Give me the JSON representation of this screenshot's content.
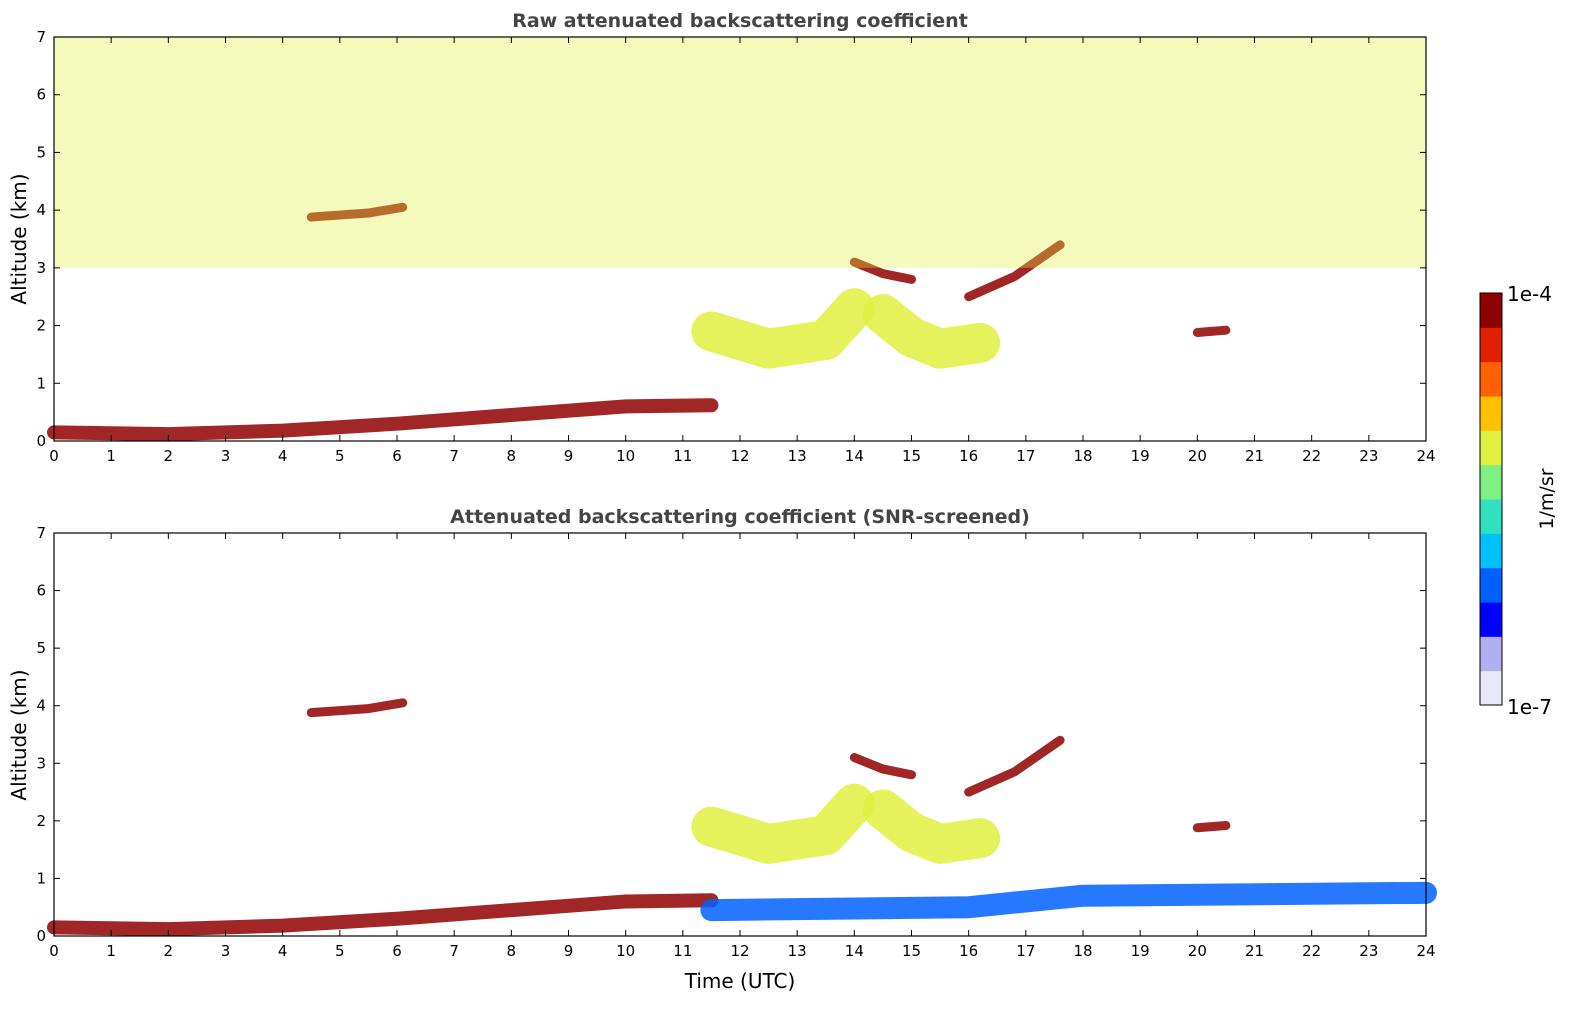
{
  "chart_data": [
    {
      "type": "heatmap",
      "title": "Raw attenuated backscattering coefficient",
      "xlabel": "",
      "ylabel": "Altitude (km)",
      "xlim": [
        0,
        24
      ],
      "ylim": [
        0,
        7
      ],
      "xticks": [
        0,
        1,
        2,
        3,
        4,
        5,
        6,
        7,
        8,
        9,
        10,
        11,
        12,
        13,
        14,
        15,
        16,
        17,
        18,
        19,
        20,
        21,
        22,
        23,
        24
      ],
      "yticks": [
        0,
        1,
        2,
        3,
        4,
        5,
        6,
        7
      ],
      "scale": "log",
      "features": [
        {
          "kind": "boundary_layer",
          "x": [
            0,
            2,
            4,
            6,
            8,
            10,
            11.5
          ],
          "y": [
            0.15,
            0.12,
            0.18,
            0.3,
            0.45,
            0.6,
            0.62
          ],
          "level": "high"
        },
        {
          "kind": "cloud_layer",
          "x": [
            4.5,
            5.5,
            6.1
          ],
          "y": [
            3.88,
            3.95,
            4.05
          ],
          "level": "high"
        },
        {
          "kind": "aerosol_layer",
          "x": [
            11.5,
            12.5,
            13.5,
            14
          ],
          "y": [
            1.9,
            1.6,
            1.75,
            2.3
          ],
          "level": "medium"
        },
        {
          "kind": "aerosol_layer",
          "x": [
            14.5,
            15,
            15.5,
            16.2
          ],
          "y": [
            2.2,
            1.8,
            1.6,
            1.7
          ],
          "level": "medium"
        },
        {
          "kind": "cloud_layer",
          "x": [
            14,
            14.5,
            15
          ],
          "y": [
            3.1,
            2.9,
            2.8
          ],
          "level": "high"
        },
        {
          "kind": "cloud_layer",
          "x": [
            16,
            16.8,
            17.6
          ],
          "y": [
            2.5,
            2.85,
            3.4
          ],
          "level": "high"
        },
        {
          "kind": "cloud_layer",
          "x": [
            20,
            20.5
          ],
          "y": [
            1.88,
            1.92
          ],
          "level": "high"
        },
        {
          "kind": "noise_background",
          "x": [
            0,
            24
          ],
          "y": [
            3,
            7
          ],
          "level": "medium"
        }
      ]
    },
    {
      "type": "heatmap",
      "title": "Attenuated backscattering coefficient (SNR-screened)",
      "xlabel": "Time (UTC)",
      "ylabel": "Altitude (km)",
      "xlim": [
        0,
        24
      ],
      "ylim": [
        0,
        7
      ],
      "xticks": [
        0,
        1,
        2,
        3,
        4,
        5,
        6,
        7,
        8,
        9,
        10,
        11,
        12,
        13,
        14,
        15,
        16,
        17,
        18,
        19,
        20,
        21,
        22,
        23,
        24
      ],
      "yticks": [
        0,
        1,
        2,
        3,
        4,
        5,
        6,
        7
      ],
      "scale": "log",
      "features": [
        {
          "kind": "boundary_layer",
          "x": [
            0,
            2,
            4,
            6,
            8,
            10,
            11.5
          ],
          "y": [
            0.15,
            0.12,
            0.18,
            0.3,
            0.45,
            0.6,
            0.62
          ],
          "level": "high"
        },
        {
          "kind": "cloud_layer",
          "x": [
            4.5,
            5.5,
            6.1
          ],
          "y": [
            3.88,
            3.95,
            4.05
          ],
          "level": "high"
        },
        {
          "kind": "aerosol_layer",
          "x": [
            11.5,
            12.5,
            13.5,
            14
          ],
          "y": [
            1.9,
            1.6,
            1.75,
            2.3
          ],
          "level": "medium"
        },
        {
          "kind": "aerosol_layer",
          "x": [
            14.5,
            15,
            15.5,
            16.2
          ],
          "y": [
            2.2,
            1.8,
            1.6,
            1.7
          ],
          "level": "medium"
        },
        {
          "kind": "cloud_layer",
          "x": [
            14,
            14.5,
            15
          ],
          "y": [
            3.1,
            2.9,
            2.8
          ],
          "level": "high"
        },
        {
          "kind": "cloud_layer",
          "x": [
            16,
            16.8,
            17.6
          ],
          "y": [
            2.5,
            2.85,
            3.4
          ],
          "level": "high"
        },
        {
          "kind": "cloud_layer",
          "x": [
            20,
            20.5
          ],
          "y": [
            1.88,
            1.92
          ],
          "level": "high"
        },
        {
          "kind": "low_signal_layer",
          "x": [
            11.5,
            16,
            18,
            24
          ],
          "y": [
            0.45,
            0.5,
            0.7,
            0.75
          ],
          "level": "low"
        }
      ]
    }
  ],
  "colorbar": {
    "label": "1/m/sr",
    "max_label": "1e-4",
    "min_label": "1e-7",
    "range": [
      1e-07,
      0.0001
    ],
    "colors": [
      "#e8e8f8",
      "#b0b0f0",
      "#0000ff",
      "#0060ff",
      "#00c0ff",
      "#30e0c0",
      "#80f080",
      "#e0f040",
      "#ffc000",
      "#ff6000",
      "#e02000",
      "#900000"
    ]
  }
}
